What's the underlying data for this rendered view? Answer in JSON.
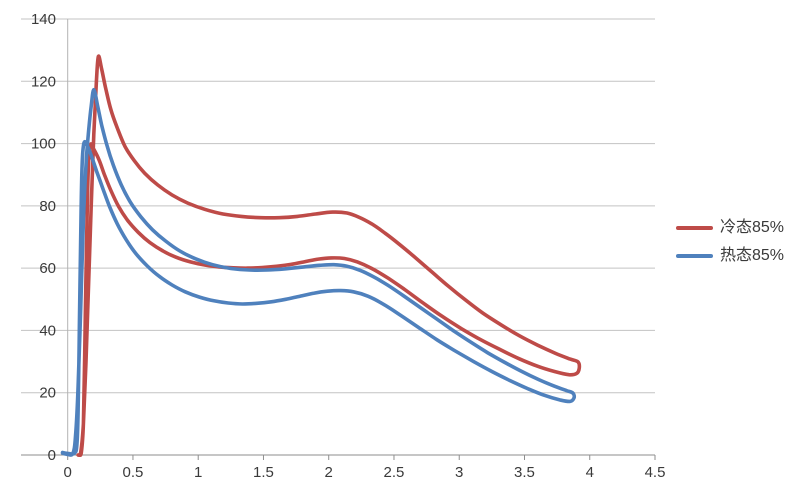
{
  "chart_data": {
    "type": "line",
    "title": "",
    "xlabel": "",
    "ylabel": "",
    "xlim": [
      0,
      4.5
    ],
    "ylim": [
      0,
      140
    ],
    "x_tick_values": [
      0,
      0.5,
      1,
      1.5,
      2,
      2.5,
      3,
      3.5,
      4,
      4.5
    ],
    "x_tick_labels": [
      "0",
      "0.5",
      "1",
      "1.5",
      "2",
      "2.5",
      "3",
      "3.5",
      "4",
      "4.5"
    ],
    "y_tick_values": [
      0,
      20,
      40,
      60,
      80,
      100,
      120,
      140
    ],
    "y_tick_labels": [
      "0",
      "20",
      "40",
      "60",
      "80",
      "100",
      "120",
      "140"
    ],
    "grid": "horizontal-only",
    "legend_position": "right",
    "axis_color": "#8e8e8e",
    "grid_color": "#c3c3c3",
    "tick_label_color": "#3a3a3a",
    "series": [
      {
        "id": "cold-85",
        "name": "冷态85%",
        "color": "#be4b48",
        "shape": "closed hysteresis loop: steep rise near x=0.1 to peak 128 at x=0.23, upper branch plateau ~76-78 around x=1.5-2.1, descends to 30 at x=3.9, lower branch returns via bump 63 at x=2.0 and dip 60 at x=1.4, spike to 100 at x=0.18, closes to 0",
        "points": [
          [
            0.08,
            0
          ],
          [
            0.1,
            1
          ],
          [
            0.12,
            10
          ],
          [
            0.14,
            30
          ],
          [
            0.16,
            55
          ],
          [
            0.18,
            80
          ],
          [
            0.2,
            103
          ],
          [
            0.22,
            120
          ],
          [
            0.235,
            128
          ],
          [
            0.26,
            124
          ],
          [
            0.29,
            118
          ],
          [
            0.33,
            111
          ],
          [
            0.38,
            105
          ],
          [
            0.44,
            99
          ],
          [
            0.51,
            94.5
          ],
          [
            0.59,
            90.5
          ],
          [
            0.69,
            86.7
          ],
          [
            0.8,
            83.5
          ],
          [
            0.92,
            80.9
          ],
          [
            1.05,
            78.9
          ],
          [
            1.19,
            77.4
          ],
          [
            1.33,
            76.6
          ],
          [
            1.48,
            76.2
          ],
          [
            1.62,
            76.2
          ],
          [
            1.76,
            76.6
          ],
          [
            1.9,
            77.4
          ],
          [
            2.03,
            78.0
          ],
          [
            2.14,
            77.7
          ],
          [
            2.23,
            76.4
          ],
          [
            2.33,
            74.2
          ],
          [
            2.43,
            71.3
          ],
          [
            2.54,
            67.7
          ],
          [
            2.66,
            63.5
          ],
          [
            2.79,
            58.8
          ],
          [
            2.92,
            54.1
          ],
          [
            3.05,
            49.7
          ],
          [
            3.18,
            45.6
          ],
          [
            3.32,
            41.8
          ],
          [
            3.46,
            38.3
          ],
          [
            3.6,
            35.3
          ],
          [
            3.74,
            32.6
          ],
          [
            3.85,
            30.8
          ],
          [
            3.91,
            29.9
          ],
          [
            3.92,
            28
          ],
          [
            3.9,
            26.2
          ],
          [
            3.84,
            25.8
          ],
          [
            3.73,
            26.8
          ],
          [
            3.6,
            28.5
          ],
          [
            3.46,
            30.9
          ],
          [
            3.32,
            33.7
          ],
          [
            3.17,
            36.9
          ],
          [
            3.02,
            40.5
          ],
          [
            2.87,
            44.5
          ],
          [
            2.72,
            48.9
          ],
          [
            2.58,
            53.2
          ],
          [
            2.45,
            56.9
          ],
          [
            2.33,
            59.9
          ],
          [
            2.22,
            62.0
          ],
          [
            2.12,
            63.1
          ],
          [
            2.02,
            63.3
          ],
          [
            1.92,
            62.9
          ],
          [
            1.82,
            62.1
          ],
          [
            1.71,
            61.2
          ],
          [
            1.6,
            60.6
          ],
          [
            1.49,
            60.2
          ],
          [
            1.38,
            60.0
          ],
          [
            1.27,
            60.1
          ],
          [
            1.16,
            60.4
          ],
          [
            1.05,
            61.0
          ],
          [
            0.94,
            62.0
          ],
          [
            0.83,
            63.5
          ],
          [
            0.73,
            65.5
          ],
          [
            0.63,
            68.2
          ],
          [
            0.54,
            71.5
          ],
          [
            0.46,
            75.3
          ],
          [
            0.39,
            79.8
          ],
          [
            0.33,
            85.0
          ],
          [
            0.28,
            90.2
          ],
          [
            0.24,
            94.8
          ],
          [
            0.2,
            98.2
          ],
          [
            0.175,
            99.7
          ],
          [
            0.16,
            94
          ],
          [
            0.15,
            80
          ],
          [
            0.14,
            58
          ],
          [
            0.13,
            32
          ],
          [
            0.12,
            10
          ],
          [
            0.105,
            1
          ],
          [
            0.09,
            0
          ]
        ]
      },
      {
        "id": "hot-85",
        "name": "热态85%",
        "color": "#4f81bd",
        "shape": "closed hysteresis loop: steep rise near x=0.08 to peak 117 at x=0.20, upper branch plateau ~59.5-61 around x=1.3-2.1, descends to 20 at x=3.87, lower branch returns via bump 52.7 at x=2.0 and dip 48.5 at x=1.35, spike to 100 at x=0.13, closes to 0",
        "points": [
          [
            -0.04,
            0.6
          ],
          [
            0.0,
            0.2
          ],
          [
            0.04,
            0.5
          ],
          [
            0.06,
            6
          ],
          [
            0.08,
            22
          ],
          [
            0.1,
            48
          ],
          [
            0.12,
            75
          ],
          [
            0.14,
            93
          ],
          [
            0.16,
            104
          ],
          [
            0.18,
            112
          ],
          [
            0.2,
            117.3
          ],
          [
            0.23,
            112
          ],
          [
            0.26,
            106
          ],
          [
            0.3,
            99.5
          ],
          [
            0.35,
            93
          ],
          [
            0.41,
            86.8
          ],
          [
            0.48,
            81.2
          ],
          [
            0.56,
            76.5
          ],
          [
            0.65,
            72.3
          ],
          [
            0.75,
            68.7
          ],
          [
            0.86,
            65.5
          ],
          [
            0.98,
            63.0
          ],
          [
            1.11,
            61.1
          ],
          [
            1.25,
            59.9
          ],
          [
            1.39,
            59.4
          ],
          [
            1.53,
            59.4
          ],
          [
            1.67,
            59.8
          ],
          [
            1.81,
            60.4
          ],
          [
            1.93,
            60.9
          ],
          [
            2.04,
            61.1
          ],
          [
            2.14,
            60.6
          ],
          [
            2.24,
            59.3
          ],
          [
            2.34,
            57.3
          ],
          [
            2.45,
            54.6
          ],
          [
            2.57,
            51.2
          ],
          [
            2.7,
            47.4
          ],
          [
            2.83,
            43.6
          ],
          [
            2.96,
            39.8
          ],
          [
            3.09,
            36.2
          ],
          [
            3.22,
            32.8
          ],
          [
            3.35,
            29.7
          ],
          [
            3.48,
            26.8
          ],
          [
            3.61,
            24.2
          ],
          [
            3.73,
            22.1
          ],
          [
            3.82,
            20.7
          ],
          [
            3.87,
            19.9
          ],
          [
            3.88,
            18.4
          ],
          [
            3.85,
            17.2
          ],
          [
            3.77,
            17.7
          ],
          [
            3.65,
            19.2
          ],
          [
            3.52,
            21.4
          ],
          [
            3.39,
            23.9
          ],
          [
            3.25,
            26.8
          ],
          [
            3.11,
            30.0
          ],
          [
            2.97,
            33.4
          ],
          [
            2.83,
            37.0
          ],
          [
            2.69,
            40.9
          ],
          [
            2.55,
            44.9
          ],
          [
            2.42,
            48.4
          ],
          [
            2.3,
            51.0
          ],
          [
            2.19,
            52.4
          ],
          [
            2.09,
            52.8
          ],
          [
            1.99,
            52.6
          ],
          [
            1.89,
            52.0
          ],
          [
            1.78,
            51.0
          ],
          [
            1.67,
            50.0
          ],
          [
            1.56,
            49.2
          ],
          [
            1.45,
            48.7
          ],
          [
            1.34,
            48.5
          ],
          [
            1.23,
            48.8
          ],
          [
            1.12,
            49.5
          ],
          [
            1.01,
            50.7
          ],
          [
            0.9,
            52.4
          ],
          [
            0.8,
            54.6
          ],
          [
            0.7,
            57.4
          ],
          [
            0.61,
            60.7
          ],
          [
            0.52,
            64.8
          ],
          [
            0.45,
            69.0
          ],
          [
            0.38,
            74.2
          ],
          [
            0.32,
            79.8
          ],
          [
            0.27,
            85.5
          ],
          [
            0.22,
            91.3
          ],
          [
            0.18,
            96.2
          ],
          [
            0.15,
            99.3
          ],
          [
            0.125,
            100.2
          ],
          [
            0.11,
            93
          ],
          [
            0.1,
            72
          ],
          [
            0.09,
            42
          ],
          [
            0.08,
            14
          ],
          [
            0.07,
            3
          ],
          [
            0.05,
            0.5
          ],
          [
            0.0,
            0.5
          ],
          [
            -0.04,
            0.8
          ]
        ]
      }
    ]
  }
}
